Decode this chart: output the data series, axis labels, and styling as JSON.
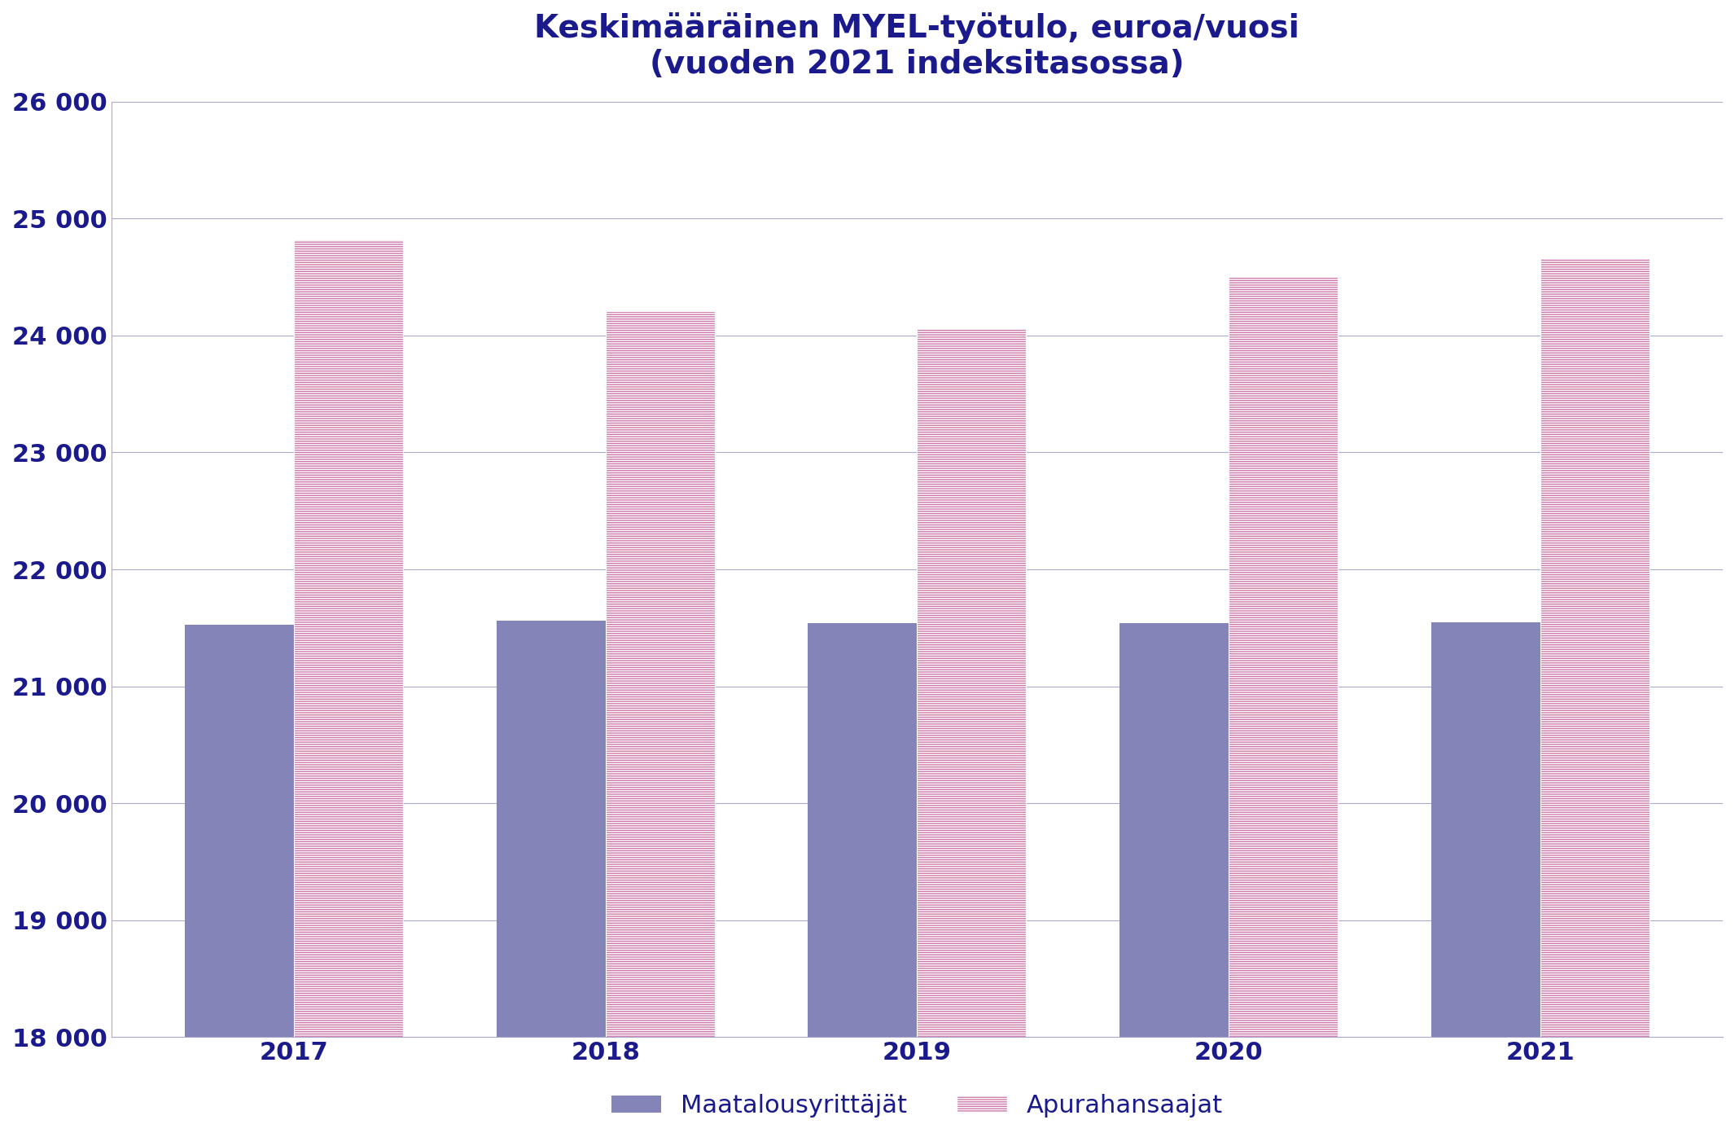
{
  "title_line1": "Keskimääräinen MYEL-työtulo, euroa/vuosi",
  "title_line2": "(vuoden 2021 indeksitasossa)",
  "years": [
    2017,
    2018,
    2019,
    2020,
    2021
  ],
  "maatalous_values": [
    21530,
    21560,
    21540,
    21540,
    21550
  ],
  "apuraha_values": [
    24820,
    24210,
    24060,
    24500,
    24660
  ],
  "maatalous_color": "#8484b8",
  "apuraha_color": "#cc77aa",
  "ylim_min": 18000,
  "ylim_max": 26000,
  "yticks": [
    18000,
    19000,
    20000,
    21000,
    22000,
    23000,
    24000,
    25000,
    26000
  ],
  "bar_width": 0.35,
  "title_color": "#1a1a8c",
  "tick_color": "#1a1a8c",
  "grid_color": "#aaaacc",
  "legend_label_1": "Maatalousyrittäjät",
  "legend_label_2": "Apurahansaajat",
  "title_fontsize": 28,
  "tick_fontsize": 22,
  "legend_fontsize": 22
}
